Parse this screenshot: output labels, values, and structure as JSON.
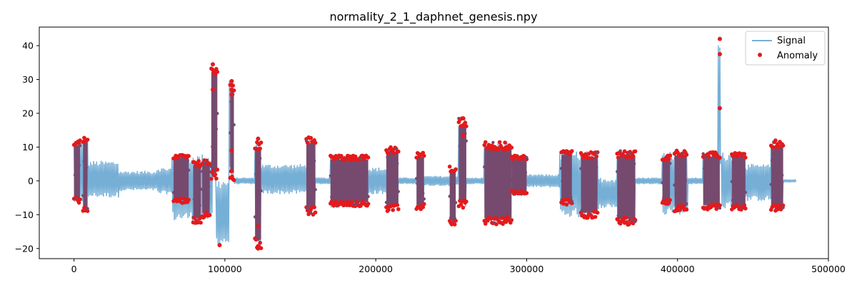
{
  "chart_data": {
    "type": "line",
    "title": "normality_2_1_daphnet_genesis.npy",
    "xlabel": "",
    "ylabel": "",
    "xlim": [
      -23000,
      500000
    ],
    "ylim": [
      -23,
      45.5
    ],
    "x_ticks": [
      0,
      100000,
      200000,
      300000,
      400000,
      500000
    ],
    "x_tick_labels": [
      "0",
      "100000",
      "200000",
      "300000",
      "400000",
      "500000"
    ],
    "y_ticks": [
      -20,
      -10,
      0,
      10,
      20,
      30,
      40
    ],
    "y_tick_labels": [
      "−20",
      "−10",
      "0",
      "10",
      "20",
      "30",
      "40"
    ],
    "grid": false,
    "legend_position": "top-right",
    "colors": {
      "signal": "#76afd6",
      "anomaly": "#e41a1c",
      "overlap": "#764a6e"
    },
    "series": [
      {
        "name": "Signal",
        "kind": "line",
        "x_range": [
          0,
          478000
        ],
        "segments": [
          {
            "x0": 0,
            "x1": 10000,
            "low": -7,
            "high": 12
          },
          {
            "x0": 10000,
            "x1": 30000,
            "low": -5,
            "high": 6
          },
          {
            "x0": 30000,
            "x1": 55000,
            "low": -3,
            "high": 3
          },
          {
            "x0": 55000,
            "x1": 65000,
            "low": -4,
            "high": 4
          },
          {
            "x0": 65000,
            "x1": 92000,
            "low": -12,
            "high": 8
          },
          {
            "x0": 92000,
            "x1": 93500,
            "low": 0,
            "high": 34.5
          },
          {
            "x0": 93500,
            "x1": 103000,
            "low": -19,
            "high": 0.5
          },
          {
            "x0": 103000,
            "x1": 106000,
            "low": 0,
            "high": 30
          },
          {
            "x0": 106000,
            "x1": 120000,
            "low": -1,
            "high": 1
          },
          {
            "x0": 120000,
            "x1": 124000,
            "low": -20,
            "high": 12.5
          },
          {
            "x0": 124000,
            "x1": 155000,
            "low": -4,
            "high": 5
          },
          {
            "x0": 155000,
            "x1": 160000,
            "low": -10,
            "high": 13
          },
          {
            "x0": 160000,
            "x1": 170000,
            "low": -1,
            "high": 1
          },
          {
            "x0": 170000,
            "x1": 195000,
            "low": -8,
            "high": 8
          },
          {
            "x0": 195000,
            "x1": 208000,
            "low": -4,
            "high": 4
          },
          {
            "x0": 208000,
            "x1": 215000,
            "low": -9,
            "high": 10
          },
          {
            "x0": 215000,
            "x1": 228000,
            "low": -1,
            "high": 1
          },
          {
            "x0": 228000,
            "x1": 232000,
            "low": -8,
            "high": 8
          },
          {
            "x0": 232000,
            "x1": 255000,
            "low": -1.5,
            "high": 1.5
          },
          {
            "x0": 255000,
            "x1": 260000,
            "low": -9,
            "high": 18.5
          },
          {
            "x0": 260000,
            "x1": 272000,
            "low": -1,
            "high": 1
          },
          {
            "x0": 272000,
            "x1": 290000,
            "low": -13,
            "high": 11.5
          },
          {
            "x0": 290000,
            "x1": 300000,
            "low": -4,
            "high": 7
          },
          {
            "x0": 300000,
            "x1": 322000,
            "low": -2,
            "high": 2
          },
          {
            "x0": 322000,
            "x1": 348000,
            "low": -11,
            "high": 9
          },
          {
            "x0": 348000,
            "x1": 360000,
            "low": -8,
            "high": 1
          },
          {
            "x0": 360000,
            "x1": 372000,
            "low": -13,
            "high": 9
          },
          {
            "x0": 372000,
            "x1": 390000,
            "low": -1,
            "high": 1
          },
          {
            "x0": 390000,
            "x1": 407000,
            "low": -10,
            "high": 9
          },
          {
            "x0": 407000,
            "x1": 417000,
            "low": -1,
            "high": 1
          },
          {
            "x0": 417000,
            "x1": 427000,
            "low": -8.5,
            "high": 8.5
          },
          {
            "x0": 427000,
            "x1": 428500,
            "low": 0,
            "high": 42
          },
          {
            "x0": 428500,
            "x1": 445000,
            "low": -8.5,
            "high": 8.5
          },
          {
            "x0": 445000,
            "x1": 462000,
            "low": -6,
            "high": 5
          },
          {
            "x0": 462000,
            "x1": 470000,
            "low": -9,
            "high": 12
          },
          {
            "x0": 470000,
            "x1": 478000,
            "low": -0.3,
            "high": 0.3
          }
        ]
      },
      {
        "name": "Anomaly",
        "kind": "scatter",
        "regions": [
          {
            "x0": 0,
            "x1": 4000,
            "low": -6.5,
            "high": 12
          },
          {
            "x0": 6000,
            "x1": 9000,
            "low": -10,
            "high": 13.5
          },
          {
            "x0": 66000,
            "x1": 76000,
            "low": -6.5,
            "high": 8
          },
          {
            "x0": 79000,
            "x1": 84000,
            "low": -12.5,
            "high": 6
          },
          {
            "x0": 85000,
            "x1": 90000,
            "low": -11,
            "high": 6.5
          },
          {
            "x0": 91000,
            "x1": 95000,
            "low": 0,
            "high": 34.5
          },
          {
            "x0": 103500,
            "x1": 106000,
            "low": 0,
            "high": 29.5
          },
          {
            "x0": 120000,
            "x1": 124000,
            "low": -20,
            "high": 12.5
          },
          {
            "x0": 154000,
            "x1": 160000,
            "low": -10,
            "high": 13
          },
          {
            "x0": 170000,
            "x1": 195000,
            "low": -7.5,
            "high": 7.5
          },
          {
            "x0": 207000,
            "x1": 215000,
            "low": -9,
            "high": 10
          },
          {
            "x0": 227000,
            "x1": 232000,
            "low": -8.5,
            "high": 8.5
          },
          {
            "x0": 249000,
            "x1": 253000,
            "low": -13,
            "high": 4.5
          },
          {
            "x0": 255000,
            "x1": 260000,
            "low": -8,
            "high": 18.5
          },
          {
            "x0": 272000,
            "x1": 290000,
            "low": -13,
            "high": 11.5
          },
          {
            "x0": 290000,
            "x1": 300000,
            "low": -4,
            "high": 7.5
          },
          {
            "x0": 323000,
            "x1": 330000,
            "low": -7,
            "high": 9
          },
          {
            "x0": 336000,
            "x1": 347000,
            "low": -11,
            "high": 8.5
          },
          {
            "x0": 360000,
            "x1": 372000,
            "low": -13,
            "high": 9
          },
          {
            "x0": 390000,
            "x1": 395000,
            "low": -7,
            "high": 7.5
          },
          {
            "x0": 398000,
            "x1": 406000,
            "low": -9,
            "high": 9
          },
          {
            "x0": 417000,
            "x1": 428000,
            "low": -8.5,
            "high": 8.5
          },
          {
            "x0": 436000,
            "x1": 445000,
            "low": -8.5,
            "high": 8.5
          },
          {
            "x0": 462000,
            "x1": 470000,
            "low": -9,
            "high": 12
          }
        ],
        "spikes": [
          {
            "x": 92000,
            "values": [
              34.5,
              27
            ]
          },
          {
            "x": 96500,
            "values": [
              -19
            ]
          },
          {
            "x": 104500,
            "values": [
              29.5,
              27,
              25.5,
              9
            ]
          },
          {
            "x": 122000,
            "values": [
              12.5,
              -13.5,
              -20
            ]
          },
          {
            "x": 258000,
            "values": [
              18.5,
              13.5
            ]
          },
          {
            "x": 428000,
            "values": [
              42,
              37.5,
              21.5
            ]
          }
        ]
      }
    ]
  }
}
